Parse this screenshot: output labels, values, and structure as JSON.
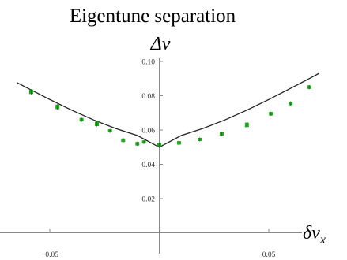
{
  "chart_data": {
    "type": "scatter",
    "title": "Eigentune separation",
    "ylabel": "Δν",
    "xlabel": "δν",
    "xlabel_subscript": "x",
    "xlim": [
      -0.07,
      0.073
    ],
    "ylim": [
      0,
      0.1
    ],
    "x_ticks": [
      -0.05,
      0.05
    ],
    "x_tick_labels": [
      "−0.05",
      "0.05"
    ],
    "y_ticks": [
      0.02,
      0.04,
      0.06,
      0.08,
      0.1
    ],
    "y_tick_labels": [
      "0.02",
      "0.04",
      "0.06",
      "0.08",
      "0.10"
    ],
    "grid": false,
    "series": [
      {
        "kind": "points",
        "color": "#1faa1f",
        "points": [
          {
            "x": -0.0585,
            "y": 0.0823,
            "err": 0.0013
          },
          {
            "x": -0.0465,
            "y": 0.0735,
            "err": 0.0013
          },
          {
            "x": -0.0355,
            "y": 0.066,
            "err": 0.001
          },
          {
            "x": -0.0285,
            "y": 0.0636,
            "err": 0.0013
          },
          {
            "x": -0.0225,
            "y": 0.0595,
            "err": 0.0009
          },
          {
            "x": -0.0165,
            "y": 0.054,
            "err": 0.001
          },
          {
            "x": -0.01,
            "y": 0.052,
            "err": 0.001
          },
          {
            "x": -0.007,
            "y": 0.053,
            "err": 0.0009
          },
          {
            "x": 0.0,
            "y": 0.0515,
            "err": 0.001
          },
          {
            "x": 0.009,
            "y": 0.0525,
            "err": 0.001
          },
          {
            "x": 0.0185,
            "y": 0.0545,
            "err": 0.0009
          },
          {
            "x": 0.0285,
            "y": 0.0577,
            "err": 0.001
          },
          {
            "x": 0.04,
            "y": 0.063,
            "err": 0.0013
          },
          {
            "x": 0.051,
            "y": 0.0695,
            "err": 0.001
          },
          {
            "x": 0.06,
            "y": 0.0755,
            "err": 0.001
          },
          {
            "x": 0.0685,
            "y": 0.085,
            "err": 0.001
          }
        ]
      },
      {
        "kind": "curve",
        "color": "#222222",
        "x": [
          -0.065,
          -0.06,
          -0.05,
          -0.04,
          -0.03,
          -0.02,
          -0.01,
          0.0,
          0.01,
          0.02,
          0.03,
          0.04,
          0.05,
          0.06,
          0.07,
          0.073
        ],
        "y": [
          0.0877,
          0.0843,
          0.0778,
          0.0716,
          0.0659,
          0.0609,
          0.0568,
          0.05,
          0.0568,
          0.0609,
          0.0659,
          0.0716,
          0.0778,
          0.0843,
          0.091,
          0.0931
        ]
      }
    ]
  }
}
